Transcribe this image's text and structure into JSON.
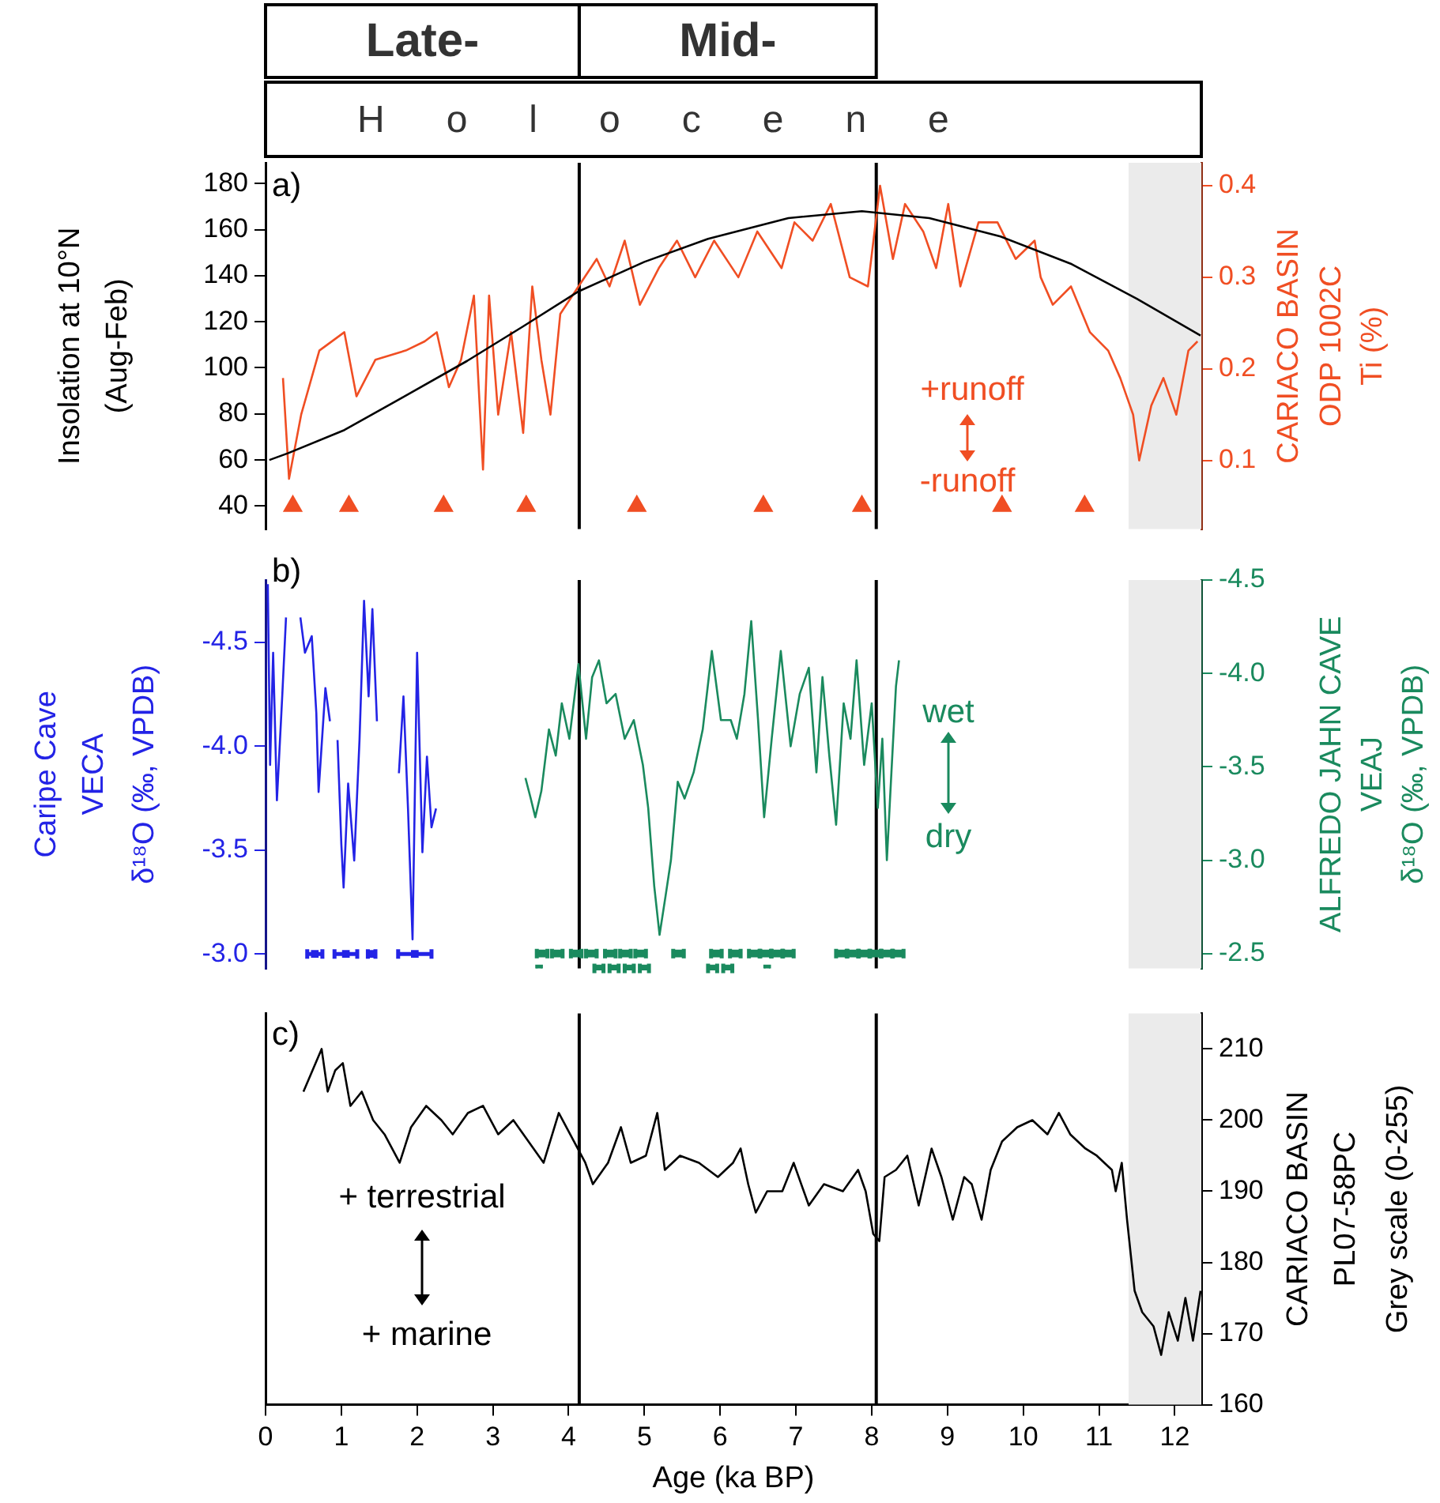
{
  "chart_data": [
    {
      "type": "line",
      "ylabel": "Insolation at 10°N\n(Aug-Feb)",
      "y2label": "CARIACO BASIN\nODP 1002C\nTi (%)",
      "annotations": [
        "Late-",
        "Mid-",
        "Holocene",
        "a)",
        "+runoff",
        "-runoff"
      ],
      "xlim": [
        0,
        12.35
      ],
      "ylim": [
        30,
        189
      ],
      "yticks": [
        40,
        60,
        80,
        100,
        120,
        140,
        160,
        180
      ],
      "y2lim": [
        0.025,
        0.425
      ],
      "y2ticks": [
        0.1,
        0.2,
        0.3,
        0.4
      ],
      "tick_labels": "y",
      "ref_lines": [
        {
          "axis": "x",
          "value": 4.14
        },
        {
          "axis": "x",
          "value": 8.06
        }
      ],
      "bands": [
        {
          "axis": "x",
          "from": 11.39,
          "to": 12.35,
          "color": "#ebebeb"
        }
      ],
      "series": [
        {
          "type": "line",
          "color": "#000000",
          "axis": "y",
          "x": [
            0.05,
            0.3,
            1.04,
            1.8,
            2.66,
            3.4,
            4.12,
            5.0,
            5.84,
            6.9,
            7.87,
            8.76,
            9.7,
            10.64,
            11.5,
            12.34
          ],
          "values": [
            60,
            63,
            73,
            87,
            103,
            118,
            133,
            146,
            156,
            165,
            168,
            165,
            157,
            145,
            130,
            114
          ]
        },
        {
          "type": "line",
          "color": "#f04e23",
          "axis": "y2",
          "x": [
            0.23,
            0.31,
            0.47,
            0.71,
            1.04,
            1.2,
            1.45,
            1.85,
            2.1,
            2.26,
            2.42,
            2.58,
            2.75,
            2.87,
            2.95,
            3.07,
            3.24,
            3.4,
            3.52,
            3.64,
            3.76,
            3.89,
            4.13,
            4.37,
            4.54,
            4.74,
            4.94,
            5.19,
            5.43,
            5.67,
            5.92,
            6.24,
            6.49,
            6.81,
            6.98,
            7.22,
            7.46,
            7.71,
            7.95,
            8.11,
            8.28,
            8.44,
            8.68,
            8.85,
            9.01,
            9.17,
            9.41,
            9.66,
            9.9,
            10.15,
            10.23,
            10.39,
            10.63,
            10.88,
            11.12,
            11.28,
            11.45,
            11.53,
            11.69,
            11.85,
            12.02,
            12.18,
            12.3
          ],
          "values": [
            0.19,
            0.08,
            0.15,
            0.22,
            0.24,
            0.17,
            0.21,
            0.22,
            0.23,
            0.24,
            0.18,
            0.21,
            0.28,
            0.09,
            0.28,
            0.15,
            0.24,
            0.13,
            0.29,
            0.21,
            0.15,
            0.26,
            0.29,
            0.32,
            0.29,
            0.34,
            0.27,
            0.31,
            0.34,
            0.3,
            0.34,
            0.3,
            0.35,
            0.31,
            0.36,
            0.34,
            0.38,
            0.3,
            0.29,
            0.4,
            0.32,
            0.38,
            0.35,
            0.31,
            0.38,
            0.29,
            0.36,
            0.36,
            0.32,
            0.34,
            0.3,
            0.27,
            0.29,
            0.24,
            0.22,
            0.19,
            0.15,
            0.1,
            0.16,
            0.19,
            0.15,
            0.22,
            0.23
          ]
        },
        {
          "type": "scatter",
          "color": "#f04e23",
          "axis": "y",
          "marker": "triangle",
          "x": [
            0.36,
            1.1,
            2.35,
            3.44,
            4.9,
            6.57,
            7.87,
            9.72,
            10.81
          ],
          "values": [
            40,
            40,
            40,
            40,
            40,
            40,
            40,
            40,
            40
          ]
        }
      ]
    },
    {
      "type": "line",
      "ylabel": "Caripe Cave\nVECA\nδ¹⁸O (‰, VPDB)",
      "y2label": "ALFREDO JAHN CAVE\nVEAJ\nδ¹⁸O (‰, VPDB)",
      "annotations": [
        "b)",
        "wet",
        "dry"
      ],
      "xlim": [
        0,
        12.35
      ],
      "ylim": [
        -2.93,
        -4.8
      ],
      "yticks": [
        {
          "value": -3.0,
          "label": "-3.0"
        },
        {
          "value": -3.5,
          "label": "-3.5"
        },
        {
          "value": -4.0,
          "label": "-4.0"
        },
        {
          "value": -4.5,
          "label": "-4.5"
        }
      ],
      "y2lim": [
        -2.42,
        -4.5
      ],
      "y2ticks": [
        {
          "value": -2.5,
          "label": "-2.5"
        },
        {
          "value": -3.0,
          "label": "-3.0"
        },
        {
          "value": -3.5,
          "label": "-3.5"
        },
        {
          "value": -4.0,
          "label": "-4.0"
        },
        {
          "value": -4.5,
          "label": "-4.5"
        }
      ],
      "tick_labels": "y",
      "ref_lines": [
        {
          "axis": "x",
          "value": 4.14
        },
        {
          "axis": "x",
          "value": 8.06
        }
      ],
      "bands": [
        {
          "axis": "x",
          "from": 11.39,
          "to": 12.35,
          "color": "#ebebeb"
        }
      ],
      "series": [
        {
          "type": "line",
          "color": "#2323e6",
          "axis": "y",
          "x": [
            0.03,
            0.06,
            0.1,
            0.15,
            0.22,
            0.27,
            0.37,
            0.46,
            0.52,
            0.61,
            0.67,
            0.7,
            0.79,
            0.85,
            0.9,
            0.95,
            1.0,
            1.03,
            1.09,
            1.17,
            1.24,
            1.3,
            1.36,
            1.41,
            1.47,
            1.6,
            1.76,
            1.82,
            1.88,
            1.94,
            2.0,
            2.07,
            2.13,
            2.19,
            2.25
          ],
          "values": [
            -4.78,
            -3.91,
            -4.45,
            -3.74,
            -4.24,
            -4.62,
            null,
            -4.62,
            -4.45,
            -4.53,
            -4.16,
            -3.78,
            -4.28,
            -4.12,
            null,
            -4.03,
            -3.53,
            -3.32,
            -3.82,
            -3.45,
            -4.03,
            -4.7,
            -4.24,
            -4.66,
            -4.12,
            null,
            -3.87,
            -4.24,
            -3.7,
            -3.07,
            -4.45,
            -3.49,
            -3.95,
            -3.61,
            -3.7
          ]
        },
        {
          "type": "line",
          "color": "#1a8a5e",
          "axis": "y2",
          "x": [
            3.43,
            3.5,
            3.56,
            3.64,
            3.74,
            3.83,
            3.91,
            4.01,
            4.13,
            4.23,
            4.31,
            4.4,
            4.5,
            4.62,
            4.74,
            4.86,
            4.98,
            5.05,
            5.13,
            5.2,
            5.28,
            5.35,
            5.44,
            5.53,
            5.65,
            5.77,
            5.89,
            6.01,
            6.14,
            6.22,
            6.32,
            6.41,
            6.5,
            6.58,
            6.68,
            6.8,
            6.93,
            7.05,
            7.17,
            7.27,
            7.35,
            7.44,
            7.53,
            7.63,
            7.72,
            7.8,
            7.9,
            8.0,
            8.08,
            8.14,
            8.2,
            8.26,
            8.32,
            8.36
          ],
          "values": [
            -3.44,
            -3.33,
            -3.23,
            -3.37,
            -3.7,
            -3.56,
            -3.84,
            -3.65,
            -4.05,
            -3.65,
            -3.98,
            -4.07,
            -3.84,
            -3.89,
            -3.65,
            -3.75,
            -3.51,
            -3.28,
            -2.86,
            -2.6,
            -2.81,
            -3.0,
            -3.42,
            -3.33,
            -3.47,
            -3.7,
            -4.12,
            -3.75,
            -3.75,
            -3.65,
            -3.89,
            -4.28,
            -3.75,
            -3.23,
            -3.65,
            -4.12,
            -3.61,
            -3.89,
            -4.03,
            -3.47,
            -3.98,
            -3.56,
            -3.19,
            -3.84,
            -3.65,
            -4.07,
            -3.51,
            -3.84,
            -3.28,
            -3.65,
            -3.0,
            -3.47,
            -3.93,
            -4.07
          ]
        },
        {
          "type": "scatter",
          "color": "#2323e6",
          "axis": "y",
          "marker": "square",
          "x": [
            0.65,
            1.06,
            1.4,
            1.97
          ],
          "values": [
            -3.0,
            -3.0,
            -3.0,
            -3.0
          ],
          "xerrors": [
            0.1,
            0.15,
            0.05,
            0.22
          ]
        },
        {
          "type": "scatter",
          "color": "#1a8a5e",
          "axis": "y2",
          "marker": "square",
          "x": [
            3.65,
            3.85,
            4.1,
            4.3,
            4.55,
            4.75,
            4.95,
            5.45,
            5.95,
            6.2,
            6.45,
            6.6,
            6.75,
            6.9,
            7.6,
            7.75,
            7.9,
            8.05,
            8.2,
            8.35,
            3.61,
            4.4,
            4.6,
            4.8,
            5.0,
            5.9,
            6.1,
            6.62
          ],
          "values": [
            -2.5,
            -2.5,
            -2.5,
            -2.5,
            -2.5,
            -2.5,
            -2.5,
            -2.5,
            -2.5,
            -2.5,
            -2.5,
            -2.5,
            -2.5,
            -2.5,
            -2.5,
            -2.5,
            -2.5,
            -2.5,
            -2.5,
            -2.5,
            -2.42,
            -2.42,
            -2.42,
            -2.42,
            -2.42,
            -2.42,
            -2.42,
            -2.42
          ],
          "xerrors": [
            0.07,
            0.07,
            0.07,
            0.07,
            0.07,
            0.07,
            0.07,
            0.07,
            0.07,
            0.07,
            0.07,
            0.07,
            0.07,
            0.07,
            0.07,
            0.07,
            0.07,
            0.07,
            0.07,
            0.07,
            null,
            0.06,
            0.06,
            0.06,
            0.06,
            0.06,
            0.06,
            null
          ]
        }
      ]
    },
    {
      "type": "line",
      "xlabel": "Age (ka BP)",
      "y2label": "CARIACO BASIN\nPL07-58PC\nGrey scale (0-255)",
      "annotations": [
        "c)",
        "+ terrestrial",
        "+ marine"
      ],
      "xlim": [
        0,
        12.35
      ],
      "xticks": [
        0,
        1,
        2,
        3,
        4,
        5,
        6,
        7,
        8,
        9,
        10,
        11,
        12
      ],
      "y2lim": [
        160,
        215
      ],
      "y2ticks": [
        160,
        170,
        180,
        190,
        200,
        210
      ],
      "ref_lines": [
        {
          "axis": "x",
          "value": 4.14
        },
        {
          "axis": "x",
          "value": 8.06
        }
      ],
      "bands": [
        {
          "axis": "x",
          "from": 11.39,
          "to": 12.35,
          "color": "#ebebeb"
        }
      ],
      "series": [
        {
          "type": "line",
          "color": "#000000",
          "axis": "y2",
          "x": [
            0.5,
            0.62,
            0.74,
            0.82,
            0.92,
            1.02,
            1.12,
            1.27,
            1.42,
            1.57,
            1.77,
            1.92,
            2.12,
            2.32,
            2.47,
            2.67,
            2.87,
            3.07,
            3.27,
            3.47,
            3.67,
            3.87,
            4.07,
            4.22,
            4.32,
            4.52,
            4.69,
            4.82,
            5.02,
            5.17,
            5.27,
            5.47,
            5.72,
            5.97,
            6.17,
            6.27,
            6.37,
            6.47,
            6.62,
            6.82,
            6.97,
            7.17,
            7.37,
            7.62,
            7.82,
            7.92,
            8.02,
            8.1,
            8.17,
            8.32,
            8.47,
            8.62,
            8.79,
            8.92,
            9.07,
            9.22,
            9.32,
            9.45,
            9.57,
            9.72,
            9.92,
            10.12,
            10.32,
            10.47,
            10.62,
            10.82,
            10.97,
            11.17,
            11.22,
            11.3,
            11.37,
            11.47,
            11.57,
            11.72,
            11.82,
            11.92,
            12.04,
            12.14,
            12.24,
            12.34
          ],
          "values": [
            204,
            207,
            210,
            204,
            207,
            208,
            202,
            204,
            200,
            198,
            194,
            199,
            202,
            200,
            198,
            201,
            202,
            198,
            200,
            197,
            194,
            201,
            197,
            194,
            191,
            194,
            199,
            194,
            195,
            201,
            193,
            195,
            194,
            192,
            194,
            196,
            191,
            187,
            190,
            190,
            194,
            188,
            191,
            190,
            193,
            190,
            184,
            183,
            192,
            193,
            195,
            188,
            196,
            192,
            186,
            192,
            191,
            186,
            193,
            197,
            199,
            200,
            198,
            201,
            198,
            196,
            195,
            193,
            190,
            194,
            186,
            176,
            173,
            171,
            167,
            173,
            169,
            175,
            169,
            176
          ]
        }
      ]
    }
  ]
}
